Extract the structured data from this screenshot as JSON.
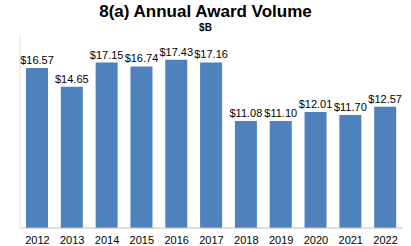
{
  "chart_data": {
    "type": "bar",
    "title": "8(a) Annual Award Volume",
    "subtitle": "$B",
    "categories": [
      "2012",
      "2013",
      "2014",
      "2015",
      "2016",
      "2017",
      "2018",
      "2019",
      "2020",
      "2021",
      "2022"
    ],
    "values": [
      16.57,
      14.65,
      17.15,
      16.74,
      17.43,
      17.16,
      11.08,
      11.1,
      12.01,
      11.7,
      12.57
    ],
    "value_labels": [
      "$16.57",
      "$14.65",
      "$17.15",
      "$16.74",
      "$17.43",
      "$17.16",
      "$11.08",
      "$11.10",
      "$12.01",
      "$11.70",
      "$12.57"
    ],
    "color": "#4f81bd",
    "ylim": [
      0,
      20
    ],
    "yticks": [
      0,
      5,
      10,
      15,
      20
    ],
    "grid": false,
    "data_labels": true,
    "tick_labels": "x"
  }
}
